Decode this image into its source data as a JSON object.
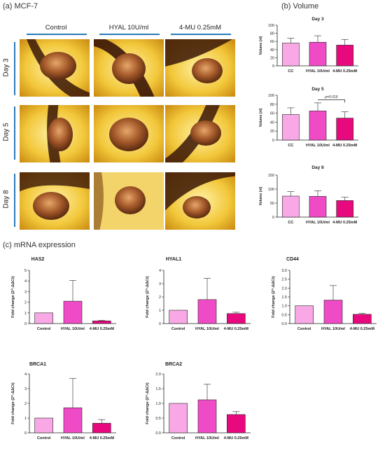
{
  "figure": {
    "panel_a_label": "(a) MCF-7",
    "panel_b_label": "(b) Volume",
    "panel_c_label": "(c) mRNA expression",
    "columns": [
      "Control",
      "HYAL 10U/ml",
      "4-MU 0.25mM"
    ],
    "rows": [
      "Day 3",
      "Day 5",
      "Day 8"
    ]
  },
  "colors": {
    "light": "#f9a8e6",
    "mid": "#f04bc6",
    "dark": "#e8097f",
    "accent": "#2a7ab8"
  },
  "chart_data": [
    {
      "type": "bar",
      "id": "vol-day3",
      "title": "Day 3",
      "ylabel": "Volume (nl)",
      "categories": [
        "CC",
        "HYAL 10U/ml",
        "4-MU 0.25mM"
      ],
      "values": [
        56,
        58,
        51
      ],
      "errors": [
        12,
        16,
        14
      ],
      "ylim": [
        0,
        100
      ],
      "yticks": [
        0,
        20,
        40,
        60,
        80,
        100
      ]
    },
    {
      "type": "bar",
      "id": "vol-day5",
      "title": "Day 5",
      "ylabel": "Volume (nl)",
      "categories": [
        "CC",
        "HYAL 10U/ml",
        "4-MU 0.25mM"
      ],
      "values": [
        57,
        65,
        49
      ],
      "errors": [
        15,
        18,
        14
      ],
      "ylim": [
        0,
        100
      ],
      "yticks": [
        0,
        20,
        40,
        60,
        80,
        100
      ],
      "annotation": "p=0.019"
    },
    {
      "type": "bar",
      "id": "vol-day8",
      "title": "Day 8",
      "ylabel": "Volume (nl)",
      "categories": [
        "CC",
        "HYAL 10U/ml",
        "4-MU 0.25mM"
      ],
      "values": [
        75,
        74,
        59
      ],
      "errors": [
        16,
        20,
        12
      ],
      "ylim": [
        0,
        150
      ],
      "yticks": [
        0,
        50,
        100,
        150
      ]
    },
    {
      "type": "bar",
      "id": "has2",
      "title": "HAS2",
      "ylabel": "Fold change (2^-ΔΔCt)",
      "categories": [
        "Control",
        "HYAL 10U/ml",
        "4-MU 0.25mM"
      ],
      "values": [
        1.0,
        2.1,
        0.25
      ],
      "errors": [
        0,
        1.95,
        0.05
      ],
      "ylim": [
        0,
        5
      ],
      "yticks": [
        0,
        1,
        2,
        3,
        4,
        5
      ]
    },
    {
      "type": "bar",
      "id": "hyal1",
      "title": "HYAL1",
      "ylabel": "Fold change (2^-ΔΔCt)",
      "categories": [
        "Control",
        "HYAL 10U/ml",
        "4-MU 0.25mM"
      ],
      "values": [
        1.0,
        1.8,
        0.75
      ],
      "errors": [
        0,
        1.6,
        0.1
      ],
      "ylim": [
        0,
        4
      ],
      "yticks": [
        0,
        1,
        2,
        3,
        4
      ]
    },
    {
      "type": "bar",
      "id": "cd44",
      "title": "CD44",
      "ylabel": "Fold change (2^-ΔΔCt)",
      "categories": [
        "Control",
        "HYAL 10U/ml",
        "4-MU 0.25mM"
      ],
      "values": [
        1.0,
        1.32,
        0.52
      ],
      "errors": [
        0,
        0.82,
        0.06
      ],
      "ylim": [
        0,
        3
      ],
      "yticks": [
        0.0,
        0.5,
        1.0,
        1.5,
        2.0,
        2.5,
        3.0
      ]
    },
    {
      "type": "bar",
      "id": "brca1",
      "title": "BRCA1",
      "ylabel": "Fold change (2^-ΔΔCt)",
      "categories": [
        "Control",
        "HYAL 10U/ml",
        "4-MU 0.25mM"
      ],
      "values": [
        1.0,
        1.7,
        0.65
      ],
      "errors": [
        0,
        2.0,
        0.25
      ],
      "ylim": [
        0,
        4
      ],
      "yticks": [
        0,
        1,
        2,
        3,
        4
      ]
    },
    {
      "type": "bar",
      "id": "brca2",
      "title": "BRCA2",
      "ylabel": "Fold change (2^-ΔΔCt)",
      "categories": [
        "Control",
        "HYAL 10U/ml",
        "4-MU 0.25mM"
      ],
      "values": [
        1.0,
        1.12,
        0.62
      ],
      "errors": [
        0,
        0.53,
        0.1
      ],
      "ylim": [
        0,
        2
      ],
      "yticks": [
        0.0,
        0.5,
        1.0,
        1.5,
        2.0
      ]
    }
  ]
}
